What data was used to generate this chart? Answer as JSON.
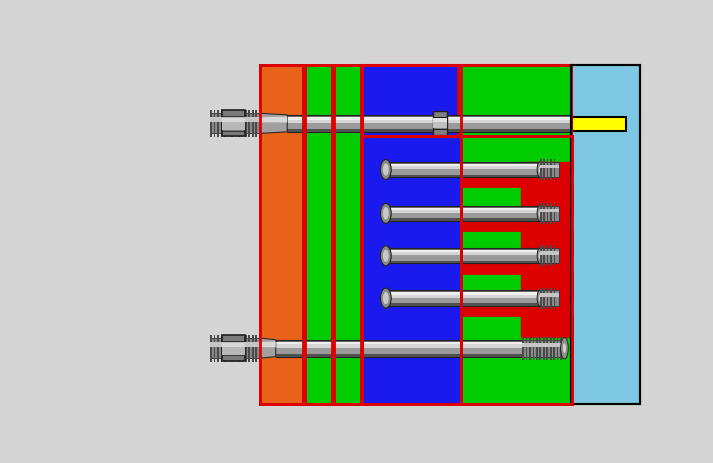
{
  "bg_color": "#d4d4d4",
  "colors": {
    "orange": "#e8621a",
    "green": "#00cc00",
    "blue": "#1a1aee",
    "red": "#dd0000",
    "light_blue": "#7ec8e3",
    "yellow": "#ffff00",
    "black": "#000000",
    "white": "#ffffff"
  }
}
